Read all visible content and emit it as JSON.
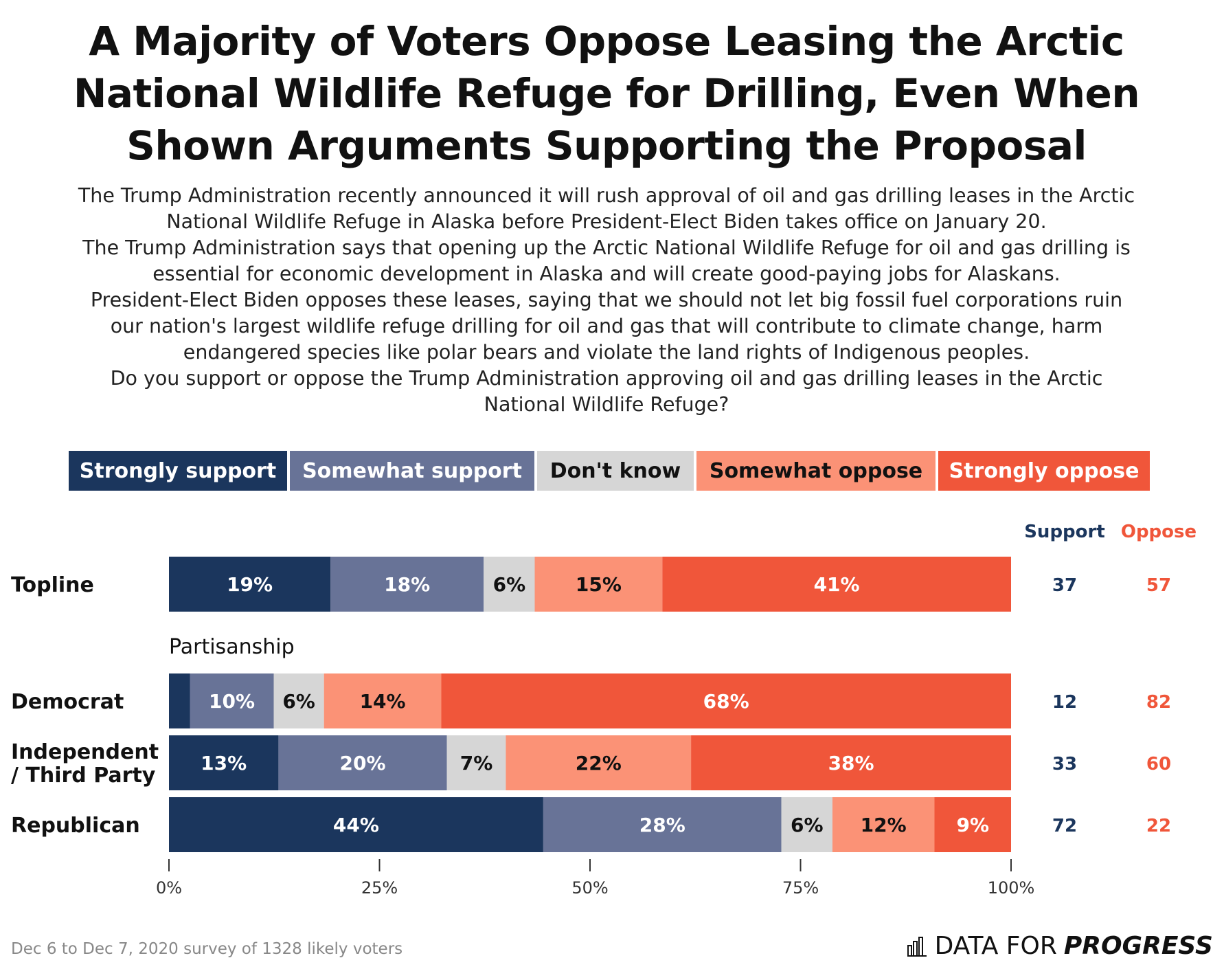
{
  "title_lines": [
    "A Majority of Voters Oppose Leasing the Arctic",
    "National Wildlife Refuge for Drilling, Even When",
    "Shown Arguments Supporting the Proposal"
  ],
  "question_lines": [
    "The Trump Administration recently announced it will rush approval of oil and gas drilling leases in the Arctic",
    "National Wildlife Refuge in Alaska before President-Elect Biden takes office on January 20.",
    "The Trump Administration says that opening up the Arctic National Wildlife Refuge for oil and gas drilling is",
    "essential for economic development in Alaska and will create good-paying jobs for Alaskans.",
    "President-Elect Biden opposes these leases, saying that we should not let big fossil fuel corporations ruin",
    "our nation's largest wildlife refuge drilling for oil and gas that will contribute to climate change, harm",
    "endangered species like polar bears and violate the land rights of Indigenous peoples.",
    "Do you support or oppose the Trump Administration approving oil and gas drilling leases in the Arctic",
    "National Wildlife Refuge?"
  ],
  "legend": [
    {
      "label": "Strongly support",
      "color": "#1b365d",
      "text_color": "#ffffff"
    },
    {
      "label": "Somewhat support",
      "color": "#687397",
      "text_color": "#ffffff"
    },
    {
      "label": "Don't know",
      "color": "#d6d6d6",
      "text_color": "#111111"
    },
    {
      "label": "Somewhat oppose",
      "color": "#fb9276",
      "text_color": "#111111"
    },
    {
      "label": "Strongly oppose",
      "color": "#f0563a",
      "text_color": "#ffffff"
    }
  ],
  "chart_data": {
    "type": "bar",
    "orientation": "horizontal",
    "stacked": true,
    "series_names": [
      "Strongly support",
      "Somewhat support",
      "Don't know",
      "Somewhat oppose",
      "Strongly oppose"
    ],
    "group_label": "Partisanship",
    "rows": [
      {
        "label": [
          "Topline"
        ],
        "values": [
          19,
          18,
          6,
          15,
          41
        ],
        "labels": [
          "19%",
          "18%",
          "6%",
          "15%",
          "41%"
        ],
        "support": "37",
        "oppose": "57"
      },
      {
        "label": [
          "Democrat"
        ],
        "values": [
          2.5,
          10,
          6,
          14,
          68
        ],
        "labels": [
          "",
          "10%",
          "6%",
          "14%",
          "68%"
        ],
        "support": "12",
        "oppose": "82"
      },
      {
        "label": [
          "Independent",
          "/ Third Party"
        ],
        "values": [
          13,
          20,
          7,
          22,
          38
        ],
        "labels": [
          "13%",
          "20%",
          "7%",
          "22%",
          "38%"
        ],
        "support": "33",
        "oppose": "60"
      },
      {
        "label": [
          "Republican"
        ],
        "values": [
          44,
          28,
          6,
          12,
          9
        ],
        "labels": [
          "44%",
          "28%",
          "6%",
          "12%",
          "9%"
        ],
        "support": "72",
        "oppose": "22"
      }
    ],
    "summary_headers": {
      "support": "Support",
      "oppose": "Oppose"
    },
    "xlim": [
      0,
      100
    ],
    "x_ticks": [
      0,
      25,
      50,
      75,
      100
    ],
    "x_tick_labels": [
      "0%",
      "25%",
      "50%",
      "75%",
      "100%"
    ]
  },
  "colors": {
    "support": "#1b365d",
    "oppose": "#f0563a",
    "axis": "#333333"
  },
  "footer": {
    "note": "Dec 6 to Dec 7, 2020 survey of 1328 likely voters",
    "brand_plain": "DATA FOR",
    "brand_bold": "PROGRESS",
    "brand_icon": "bar-chart-logo-icon"
  }
}
